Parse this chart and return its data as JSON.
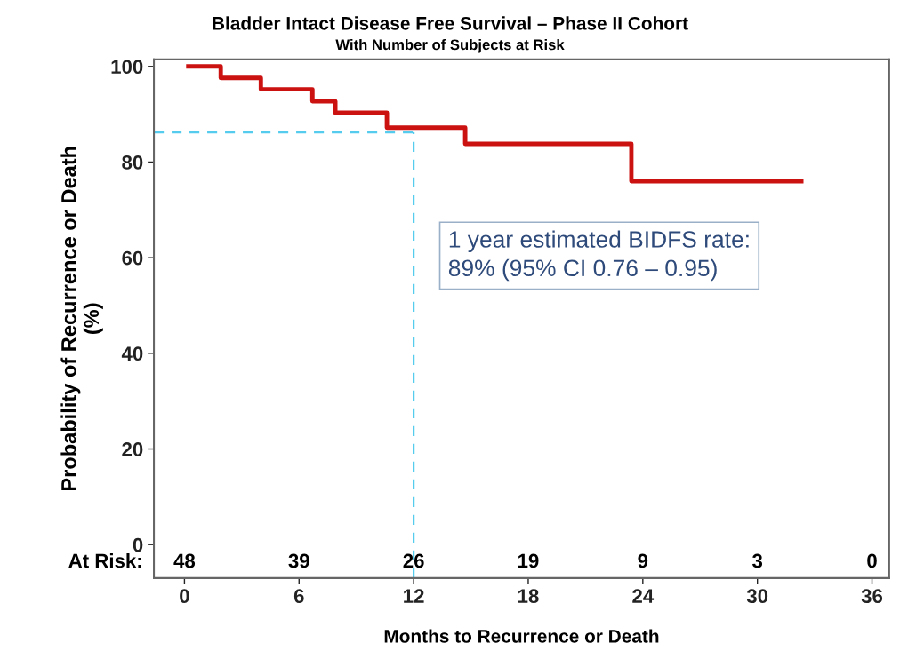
{
  "chart_data": {
    "type": "step",
    "title": "Bladder Intact Disease Free Survival – Phase II Cohort",
    "subtitle": "With Number of Subjects at Risk",
    "xlabel": "Months to Recurrence or Death",
    "ylabel": "Probability of Recurrence or Death\n(%)",
    "x": [
      0.2,
      1.9,
      4.0,
      6.7,
      7.9,
      10.6,
      14.7,
      23.4,
      32.3
    ],
    "series": [
      {
        "color": "#cc1111",
        "values": [
          100,
          97.6,
          95.2,
          92.7,
          90.3,
          87.2,
          83.8,
          76.0,
          76.0
        ]
      }
    ],
    "xlim": [
      -1.6,
      36.9
    ],
    "xticks": [
      0,
      6,
      12,
      18,
      24,
      30,
      36
    ],
    "ylim": [
      -7,
      101.5
    ],
    "yticks": [
      0,
      20,
      40,
      60,
      80,
      100
    ],
    "ref_lines": [
      {
        "axis": "y",
        "value": 86.2,
        "color": "#55ccee",
        "line_style": "dashed"
      },
      {
        "axis": "x",
        "value": 12,
        "color": "#55ccee",
        "line_style": "dashed"
      }
    ],
    "annotations": [
      "1 year estimated BIDFS rate:\n89% (95% CI 0.76 – 0.95)",
      "At Risk:",
      "48",
      "39",
      "26",
      "19",
      "9",
      "3",
      "0"
    ],
    "grid": false,
    "legend": false
  }
}
